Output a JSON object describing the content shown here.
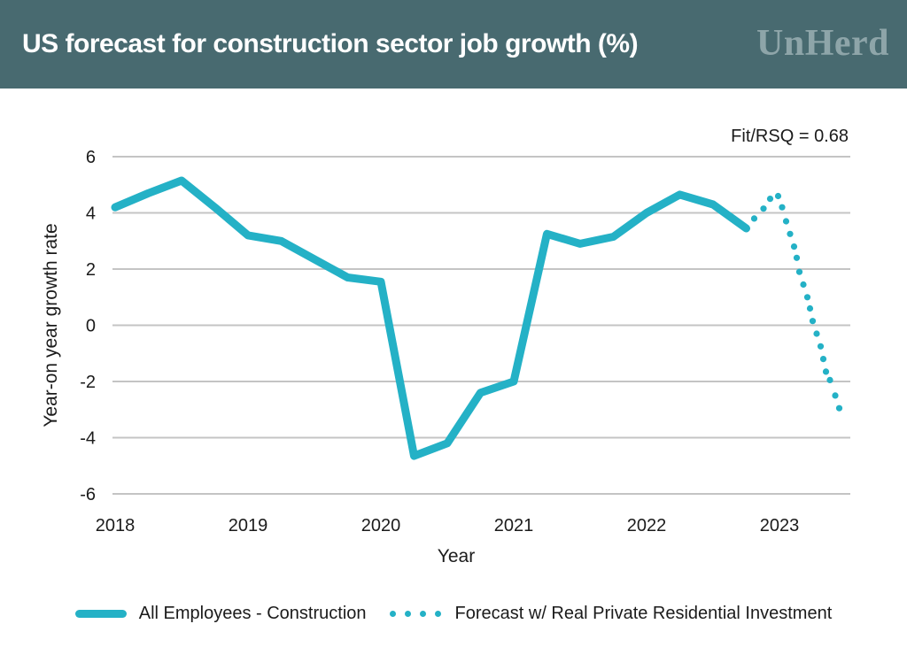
{
  "header": {
    "title": "US forecast for construction sector job growth (%)",
    "brand": "UnHerd"
  },
  "chart_data": {
    "type": "line",
    "title": "US forecast for construction sector job growth (%)",
    "xlabel": "Year",
    "ylabel": "Year-on year growth rate",
    "ylim": [
      -6,
      6
    ],
    "yticks": [
      6,
      4,
      2,
      0,
      -2,
      -4,
      -6
    ],
    "xticks": [
      2018,
      2019,
      2020,
      2021,
      2022,
      2023
    ],
    "grid": true,
    "legend_position": "bottom",
    "annotation": "Fit/RSQ = 0.68",
    "series": [
      {
        "name": "All Employees - Construction",
        "style": "solid",
        "x": [
          2018.0,
          2018.25,
          2018.5,
          2018.75,
          2019.0,
          2019.25,
          2019.5,
          2019.75,
          2020.0,
          2020.25,
          2020.5,
          2020.75,
          2021.0,
          2021.25,
          2021.5,
          2021.75,
          2022.0,
          2022.25,
          2022.5,
          2022.75
        ],
        "values": [
          4.2,
          4.7,
          5.15,
          4.2,
          3.2,
          3.0,
          2.35,
          1.7,
          1.55,
          -4.65,
          -4.2,
          -2.4,
          -2.0,
          3.25,
          2.9,
          3.15,
          4.0,
          4.65,
          4.3,
          3.45
        ]
      },
      {
        "name": "Forecast w/ Real Private Residential Investment",
        "style": "dotted",
        "x": [
          2022.81,
          2022.88,
          2022.93,
          2022.99,
          2023.02,
          2023.05,
          2023.08,
          2023.11,
          2023.13,
          2023.15,
          2023.18,
          2023.21,
          2023.23,
          2023.25,
          2023.28,
          2023.31,
          2023.33,
          2023.35,
          2023.38,
          2023.42,
          2023.45
        ],
        "values": [
          3.8,
          4.15,
          4.5,
          4.6,
          4.2,
          3.7,
          3.25,
          2.8,
          2.4,
          1.9,
          1.45,
          1.0,
          0.6,
          0.15,
          -0.3,
          -0.75,
          -1.2,
          -1.65,
          -1.95,
          -2.5,
          -2.95
        ]
      }
    ]
  },
  "legend": {
    "items": [
      {
        "label": "All Employees - Construction",
        "marker": "line"
      },
      {
        "label": "Forecast w/ Real Private Residential Investment",
        "marker": "dots"
      }
    ]
  },
  "colors": {
    "accent": "#24b1c6",
    "header_bg": "#486a70",
    "brand": "#8ea5a9",
    "grid": "#c4c4c4",
    "text": "#1b1b1b"
  }
}
